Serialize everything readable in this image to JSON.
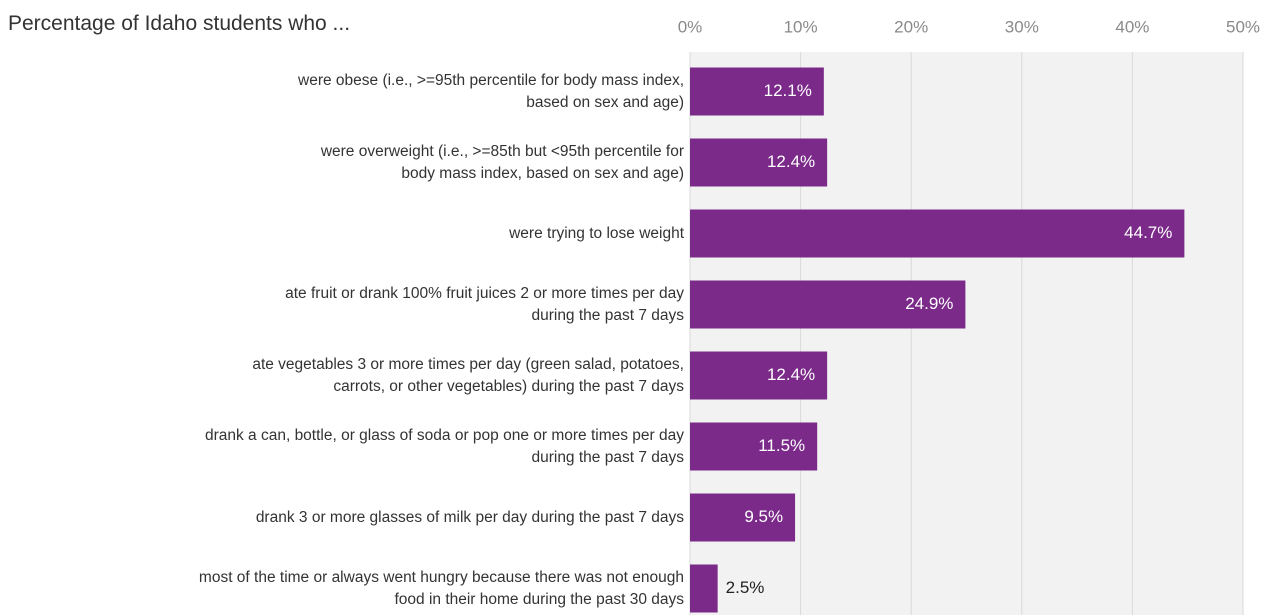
{
  "chart_data": {
    "type": "bar",
    "orientation": "horizontal",
    "title": "Percentage of Idaho students who ...",
    "categories": [
      "were obese (i.e., >=95th percentile for body mass index,\nbased on sex and age)",
      "were overweight (i.e., >=85th but <95th percentile for\nbody mass index, based on sex and age)",
      "were trying to lose weight",
      "ate fruit or drank 100% fruit juices 2 or more times per day\nduring the past 7 days",
      "ate vegetables 3 or more times per day (green salad, potatoes,\ncarrots, or other vegetables) during the past 7 days",
      "drank a can, bottle, or glass of soda or pop one or more times per day\nduring the past 7 days",
      "drank 3 or more glasses of milk per day during the past 7 days",
      "most of the time or always went hungry because there was not enough\nfood in their home during the past 30 days"
    ],
    "values": [
      12.1,
      12.4,
      44.7,
      24.9,
      12.4,
      11.5,
      9.5,
      2.5
    ],
    "value_labels": [
      "12.1%",
      "12.4%",
      "44.7%",
      "24.9%",
      "12.4%",
      "11.5%",
      "9.5%",
      "2.5%"
    ],
    "color": "#7b2a8a",
    "xlim": [
      0,
      50
    ],
    "xticks": [
      {
        "value": 0,
        "label": "0%"
      },
      {
        "value": 10,
        "label": "10%"
      },
      {
        "value": 20,
        "label": "20%"
      },
      {
        "value": 30,
        "label": "30%"
      },
      {
        "value": 40,
        "label": "40%"
      },
      {
        "value": 50,
        "label": "50%"
      }
    ],
    "grid": true
  }
}
